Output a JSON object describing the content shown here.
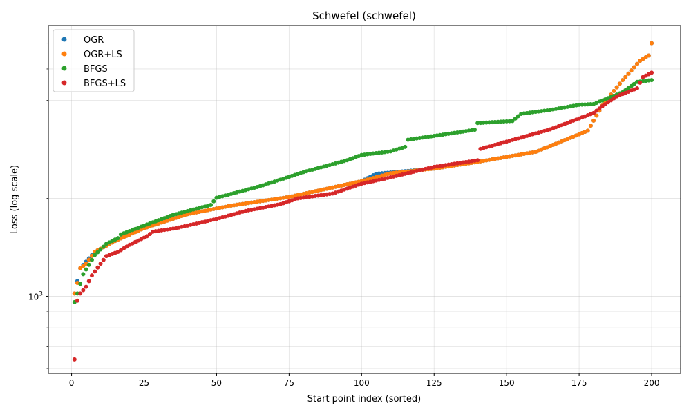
{
  "chart_data": {
    "type": "scatter",
    "title": "Schwefel (schwefel)",
    "xlabel": "Start point index (sorted)",
    "ylabel": "Loss (log scale)",
    "yscale": "log",
    "xlim": [
      -8,
      210
    ],
    "ylim": [
      580,
      6800
    ],
    "grid": true,
    "legend_position": "top-left",
    "x_ticks": [
      0,
      25,
      50,
      75,
      100,
      125,
      150,
      175,
      200
    ],
    "x_tick_labels": [
      "0",
      "25",
      "50",
      "75",
      "100",
      "125",
      "150",
      "175",
      "200"
    ],
    "y_major_ticks": [
      1000
    ],
    "y_major_tick_labels": [
      "10",
      "3"
    ],
    "y_minor_ticks": [
      600,
      700,
      800,
      900,
      2000,
      3000,
      4000,
      5000,
      6000
    ],
    "series": [
      {
        "name": "OGR",
        "color": "#1f77b4",
        "anchors": [
          [
            1,
            1020
          ],
          [
            3,
            1220
          ],
          [
            8,
            1370
          ],
          [
            15,
            1480
          ],
          [
            25,
            1620
          ],
          [
            40,
            1790
          ],
          [
            55,
            1900
          ],
          [
            75,
            2020
          ],
          [
            100,
            2260
          ],
          [
            105,
            2380
          ],
          [
            125,
            2470
          ],
          [
            140,
            2590
          ],
          [
            160,
            2780
          ],
          [
            170,
            3020
          ],
          [
            178,
            3230
          ],
          [
            183,
            3860
          ],
          [
            190,
            4620
          ],
          [
            196,
            5300
          ],
          [
            199,
            5500
          ],
          [
            200,
            6000
          ]
        ]
      },
      {
        "name": "OGR+LS",
        "color": "#ff7f0e",
        "anchors": [
          [
            1,
            1020
          ],
          [
            2,
            1100
          ],
          [
            3,
            1220
          ],
          [
            5,
            1260
          ],
          [
            8,
            1370
          ],
          [
            15,
            1480
          ],
          [
            25,
            1620
          ],
          [
            40,
            1790
          ],
          [
            55,
            1900
          ],
          [
            75,
            2020
          ],
          [
            100,
            2260
          ],
          [
            110,
            2390
          ],
          [
            125,
            2470
          ],
          [
            140,
            2590
          ],
          [
            160,
            2780
          ],
          [
            170,
            3020
          ],
          [
            178,
            3230
          ],
          [
            183,
            3860
          ],
          [
            190,
            4620
          ],
          [
            196,
            5300
          ],
          [
            199,
            5500
          ],
          [
            200,
            6000
          ]
        ]
      },
      {
        "name": "BFGS",
        "color": "#2ca02c",
        "anchors": [
          [
            1,
            960
          ],
          [
            2,
            1020
          ],
          [
            4,
            1170
          ],
          [
            6,
            1250
          ],
          [
            8,
            1340
          ],
          [
            12,
            1450
          ],
          [
            16,
            1510
          ],
          [
            17,
            1550
          ],
          [
            25,
            1650
          ],
          [
            35,
            1780
          ],
          [
            48,
            1910
          ],
          [
            50,
            2010
          ],
          [
            65,
            2180
          ],
          [
            80,
            2410
          ],
          [
            95,
            2620
          ],
          [
            100,
            2720
          ],
          [
            110,
            2790
          ],
          [
            115,
            2880
          ],
          [
            116,
            3030
          ],
          [
            130,
            3160
          ],
          [
            139,
            3250
          ],
          [
            140,
            3410
          ],
          [
            152,
            3460
          ],
          [
            155,
            3640
          ],
          [
            165,
            3740
          ],
          [
            175,
            3880
          ],
          [
            180,
            3900
          ],
          [
            190,
            4240
          ],
          [
            195,
            4560
          ],
          [
            200,
            4620
          ]
        ]
      },
      {
        "name": "BFGS+LS",
        "color": "#d62728",
        "anchors": [
          [
            1,
            640
          ],
          [
            2,
            970
          ],
          [
            3,
            1020
          ],
          [
            5,
            1070
          ],
          [
            7,
            1160
          ],
          [
            10,
            1260
          ],
          [
            12,
            1330
          ],
          [
            16,
            1370
          ],
          [
            20,
            1440
          ],
          [
            26,
            1530
          ],
          [
            28,
            1580
          ],
          [
            36,
            1620
          ],
          [
            50,
            1730
          ],
          [
            60,
            1830
          ],
          [
            72,
            1920
          ],
          [
            78,
            2000
          ],
          [
            90,
            2070
          ],
          [
            100,
            2220
          ],
          [
            108,
            2300
          ],
          [
            125,
            2500
          ],
          [
            140,
            2620
          ],
          [
            141,
            2840
          ],
          [
            150,
            2990
          ],
          [
            165,
            3260
          ],
          [
            180,
            3660
          ],
          [
            183,
            3840
          ],
          [
            188,
            4120
          ],
          [
            195,
            4360
          ],
          [
            197,
            4720
          ],
          [
            200,
            4870
          ]
        ]
      }
    ]
  }
}
